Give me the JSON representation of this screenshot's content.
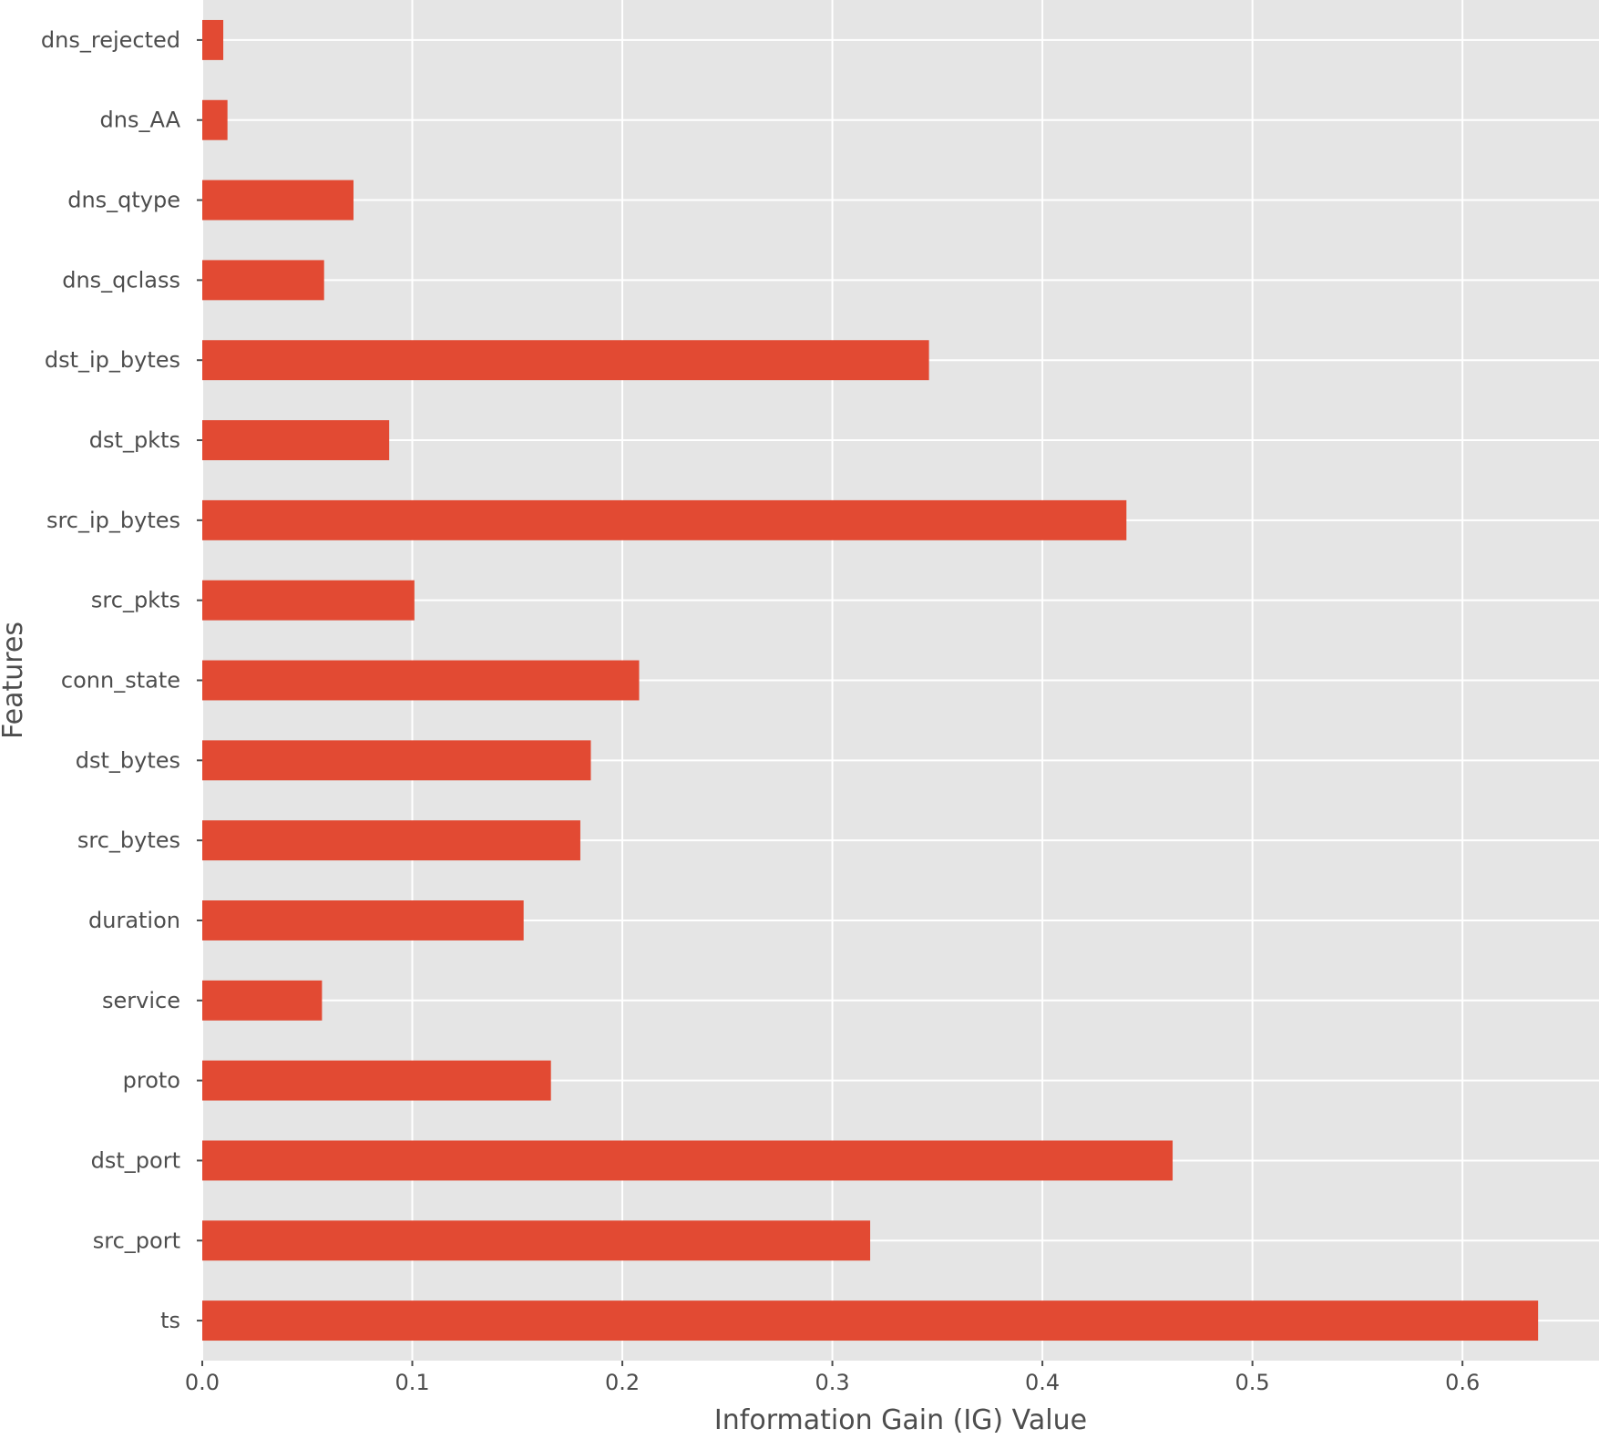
{
  "chart_data": {
    "type": "bar",
    "orientation": "horizontal",
    "xlabel": "Information Gain (IG) Value",
    "ylabel": "Features",
    "xlim": [
      0,
      0.665
    ],
    "xticks": [
      0.0,
      0.1,
      0.2,
      0.3,
      0.4,
      0.5,
      0.6
    ],
    "xtick_labels": [
      "0.0",
      "0.1",
      "0.2",
      "0.3",
      "0.4",
      "0.5",
      "0.6"
    ],
    "grid": true,
    "legend": "none",
    "colors": {
      "bar": "#e24a33",
      "plot_background": "#e5e5e5",
      "grid": "#ffffff",
      "text": "#4d4d4d"
    },
    "categories": [
      "dns_rejected",
      "dns_AA",
      "dns_qtype",
      "dns_qclass",
      "dst_ip_bytes",
      "dst_pkts",
      "src_ip_bytes",
      "src_pkts",
      "conn_state",
      "dst_bytes",
      "src_bytes",
      "duration",
      "service",
      "proto",
      "dst_port",
      "src_port",
      "ts"
    ],
    "values": [
      0.01,
      0.012,
      0.072,
      0.058,
      0.346,
      0.089,
      0.44,
      0.101,
      0.208,
      0.185,
      0.18,
      0.153,
      0.057,
      0.166,
      0.462,
      0.318,
      0.636
    ]
  }
}
